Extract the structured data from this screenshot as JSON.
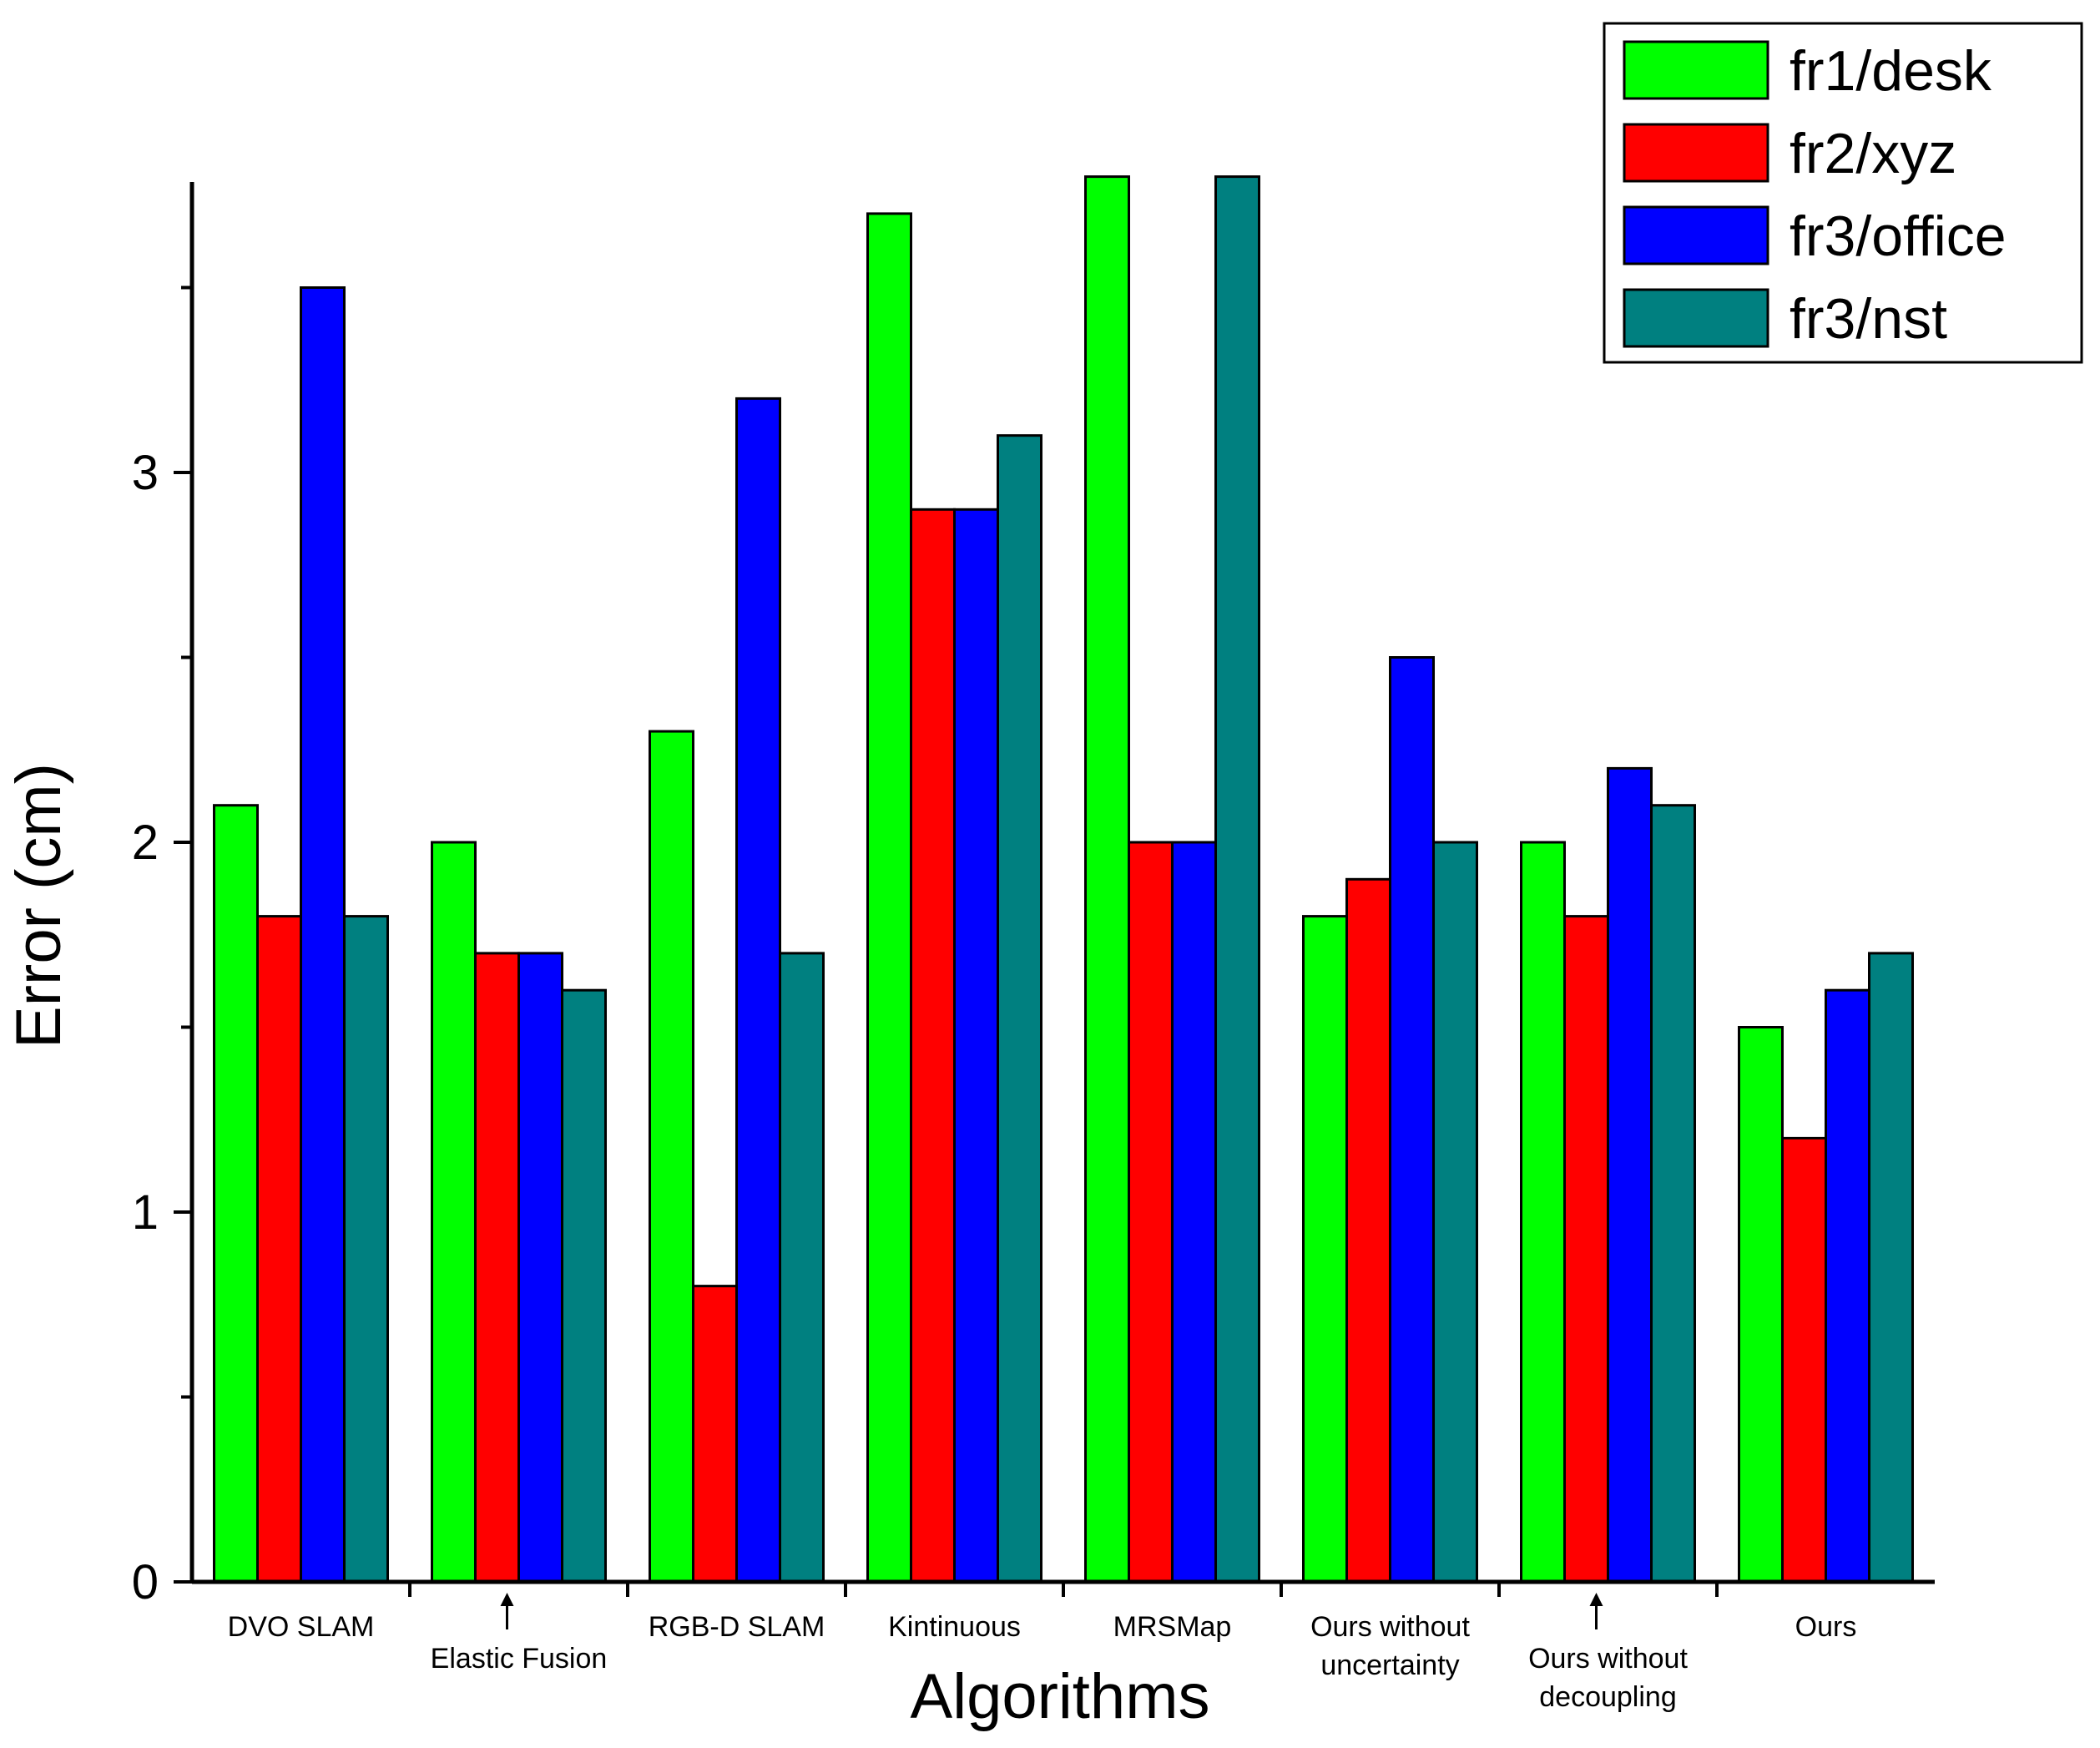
{
  "chart_data": {
    "type": "bar",
    "title": "",
    "xlabel": "Algorithms",
    "ylabel": "Error (cm)",
    "ylim": [
      0,
      3.8
    ],
    "yticks": [
      0,
      1,
      2,
      3
    ],
    "categories": [
      [
        "DVO SLAM"
      ],
      [
        "Elastic Fusion"
      ],
      [
        "RGB-D SLAM"
      ],
      [
        "Kintinuous"
      ],
      [
        "MRSMap"
      ],
      [
        "Ours without",
        "uncertainty"
      ],
      [
        "Ours without",
        "decoupling"
      ],
      [
        "Ours"
      ]
    ],
    "label_offset": [
      false,
      true,
      false,
      false,
      false,
      false,
      true,
      false
    ],
    "series": [
      {
        "name": "fr1/desk",
        "color": "#00ff00",
        "values": [
          2.1,
          2.0,
          2.3,
          3.7,
          3.8,
          1.8,
          2.0,
          1.5
        ]
      },
      {
        "name": "fr2/xyz",
        "color": "#ff0000",
        "values": [
          1.8,
          1.7,
          0.8,
          2.9,
          2.0,
          1.9,
          1.8,
          1.2
        ]
      },
      {
        "name": "fr3/office",
        "color": "#0000ff",
        "values": [
          3.5,
          1.7,
          3.2,
          2.9,
          2.0,
          2.5,
          2.2,
          1.6
        ]
      },
      {
        "name": "fr3/nst",
        "color": "#008080",
        "values": [
          1.8,
          1.6,
          1.7,
          3.1,
          3.8,
          2.0,
          2.1,
          1.7
        ]
      }
    ],
    "legend_position": "top-right",
    "grid": false
  }
}
